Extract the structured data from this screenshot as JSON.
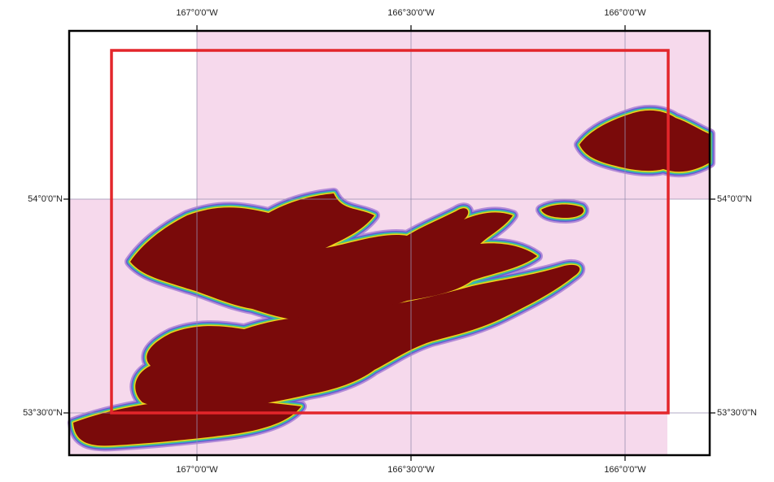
{
  "map": {
    "top_labels": [
      "167°0'0\"W",
      "166°30'0\"W",
      "166°0'0\"W"
    ],
    "bottom_labels": [
      "167°0'0\"W",
      "166°30'0\"W",
      "166°0'0\"W"
    ],
    "left_labels": [
      "54°0'0\"N",
      "53°30'0\"N"
    ],
    "right_labels": [
      "54°0'0\"N",
      "53°30'0\"N"
    ]
  }
}
